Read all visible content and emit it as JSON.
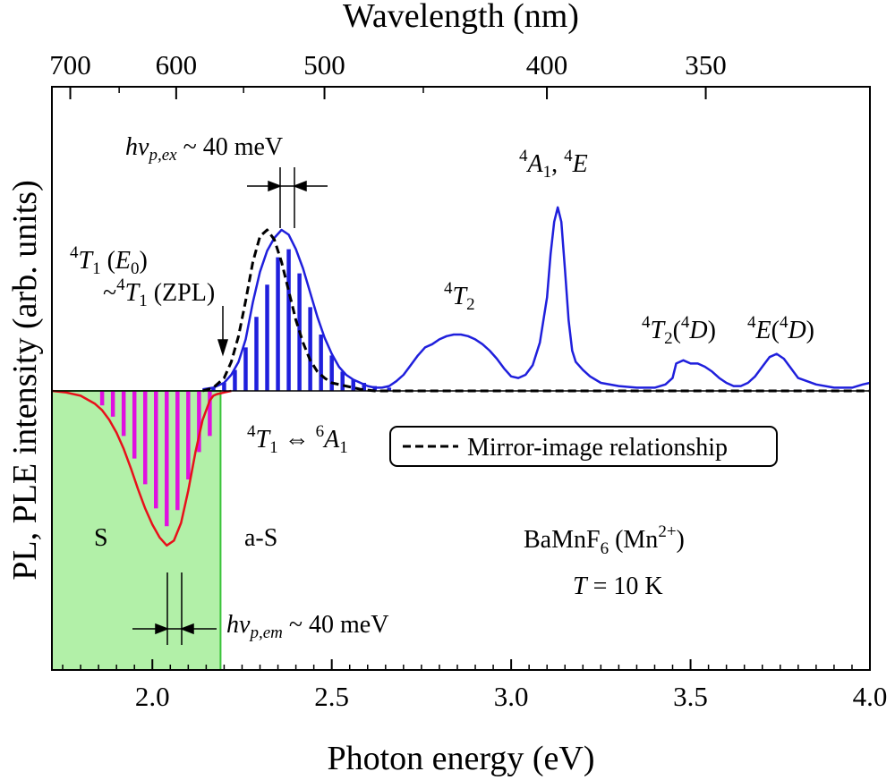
{
  "chart_data": {
    "type": "line",
    "xlabel": "Photon energy (eV)",
    "ylabel": "PL, PLE intensity (arb. units)",
    "top_axis_label": "Wavelength (nm)",
    "xlim": [
      1.72,
      4.0
    ],
    "x_ticks": [
      "2.0",
      "2.5",
      "3.0",
      "3.5",
      "4.0"
    ],
    "top_ticks": [
      "700",
      "600",
      "500",
      "400",
      "350"
    ],
    "top_tick_values_nm": [
      700,
      600,
      500,
      400,
      350
    ],
    "ylim": [
      -1.0,
      1.08
    ],
    "shaded_region": {
      "x": [
        1.72,
        2.19
      ],
      "color": "#b2f0a8",
      "edge": "#39c339"
    },
    "series": [
      {
        "role": "PLE",
        "color": "#1f1fdc",
        "x": [
          2.14,
          2.17,
          2.2,
          2.22,
          2.24,
          2.26,
          2.28,
          2.3,
          2.32,
          2.34,
          2.36,
          2.38,
          2.4,
          2.42,
          2.44,
          2.46,
          2.48,
          2.5,
          2.52,
          2.54,
          2.56,
          2.58,
          2.6,
          2.62,
          2.64,
          2.66,
          2.68,
          2.7,
          2.72,
          2.74,
          2.76,
          2.78,
          2.8,
          2.82,
          2.84,
          2.86,
          2.88,
          2.9,
          2.92,
          2.94,
          2.96,
          2.98,
          3.0,
          3.02,
          3.04,
          3.06,
          3.08,
          3.1,
          3.11,
          3.12,
          3.13,
          3.14,
          3.15,
          3.16,
          3.17,
          3.18,
          3.2,
          3.22,
          3.25,
          3.3,
          3.35,
          3.4,
          3.43,
          3.45,
          3.46,
          3.48,
          3.5,
          3.52,
          3.54,
          3.56,
          3.58,
          3.6,
          3.62,
          3.64,
          3.66,
          3.68,
          3.7,
          3.72,
          3.74,
          3.76,
          3.78,
          3.8,
          3.85,
          3.9,
          3.95,
          3.98,
          4.0
        ],
        "y": [
          0.01,
          0.02,
          0.05,
          0.1,
          0.18,
          0.32,
          0.55,
          0.74,
          0.87,
          0.95,
          1.0,
          0.97,
          0.88,
          0.76,
          0.61,
          0.46,
          0.33,
          0.23,
          0.15,
          0.1,
          0.07,
          0.05,
          0.03,
          0.02,
          0.02,
          0.03,
          0.06,
          0.1,
          0.16,
          0.22,
          0.27,
          0.29,
          0.32,
          0.34,
          0.35,
          0.35,
          0.34,
          0.32,
          0.29,
          0.25,
          0.2,
          0.14,
          0.09,
          0.08,
          0.1,
          0.16,
          0.3,
          0.58,
          0.85,
          1.05,
          1.14,
          1.05,
          0.75,
          0.44,
          0.25,
          0.18,
          0.13,
          0.09,
          0.05,
          0.03,
          0.02,
          0.02,
          0.04,
          0.08,
          0.17,
          0.19,
          0.17,
          0.17,
          0.15,
          0.12,
          0.08,
          0.05,
          0.03,
          0.03,
          0.05,
          0.09,
          0.15,
          0.21,
          0.23,
          0.2,
          0.14,
          0.08,
          0.04,
          0.02,
          0.02,
          0.04,
          0.05
        ]
      },
      {
        "role": "PL",
        "color": "#e8101a",
        "x": [
          1.72,
          1.76,
          1.8,
          1.84,
          1.86,
          1.88,
          1.9,
          1.92,
          1.94,
          1.96,
          1.98,
          2.0,
          2.02,
          2.04,
          2.06,
          2.08,
          2.1,
          2.12,
          2.14,
          2.16,
          2.17,
          2.18,
          2.2,
          2.22
        ],
        "y": [
          0.0,
          -0.01,
          -0.03,
          -0.08,
          -0.12,
          -0.18,
          -0.26,
          -0.36,
          -0.48,
          -0.61,
          -0.73,
          -0.83,
          -0.91,
          -0.96,
          -0.93,
          -0.82,
          -0.62,
          -0.38,
          -0.18,
          -0.06,
          -0.03,
          -0.02,
          -0.01,
          0.0
        ]
      },
      {
        "role": "mirror-image",
        "color": "#000000",
        "style": "dashed",
        "x": [
          2.14,
          2.17,
          2.2,
          2.22,
          2.24,
          2.26,
          2.28,
          2.3,
          2.32,
          2.34,
          2.36,
          2.38,
          2.4,
          2.42,
          2.44,
          2.46,
          2.48,
          2.5,
          2.52,
          2.54,
          2.56,
          2.58,
          2.62,
          2.7,
          3.0,
          3.5,
          4.0
        ],
        "y": [
          0.0,
          0.02,
          0.08,
          0.18,
          0.34,
          0.56,
          0.8,
          0.96,
          1.0,
          0.94,
          0.8,
          0.62,
          0.44,
          0.3,
          0.19,
          0.12,
          0.08,
          0.05,
          0.04,
          0.03,
          0.02,
          0.01,
          0.0,
          0.0,
          0.0,
          0.0,
          0.0
        ]
      }
    ],
    "ple_sticks": {
      "color": "#1f1fdc",
      "x": [
        2.17,
        2.2,
        2.23,
        2.26,
        2.29,
        2.32,
        2.35,
        2.38,
        2.41,
        2.44,
        2.47,
        2.5,
        2.53,
        2.56,
        2.59,
        2.62,
        2.66
      ],
      "y": [
        0.02,
        0.05,
        0.13,
        0.27,
        0.46,
        0.66,
        0.83,
        0.88,
        0.73,
        0.52,
        0.35,
        0.22,
        0.12,
        0.07,
        0.05,
        0.03,
        0.02
      ]
    },
    "pl_sticks": {
      "color": "#e010e0",
      "x": [
        1.86,
        1.89,
        1.92,
        1.95,
        1.98,
        2.01,
        2.04,
        2.07,
        2.1,
        2.13,
        2.16
      ],
      "y": [
        -0.09,
        -0.16,
        -0.28,
        -0.42,
        -0.58,
        -0.73,
        -0.84,
        -0.74,
        -0.55,
        -0.38,
        -0.28
      ]
    },
    "annotations": {
      "ple_width": "hν_p,ex ~ 40 meV",
      "pl_width": "hν_p,em ~ 40 meV",
      "zpl": "4T1 (E0) ~4T1 (ZPL)",
      "transition": "4T1 ⇔ 6A1",
      "peak_4A1_4E": "4A1, 4E",
      "peak_4T2": "4T2",
      "peak_4T2_4D": "4T2 (4D)",
      "peak_4E_4D": "4E (4D)",
      "stokes": "S",
      "anti_stokes": "a-S",
      "sample": "BaMnF6 (Mn2+)",
      "temperature": "T = 10 K"
    },
    "legend": {
      "entries": [
        "Mirror-image relationship"
      ],
      "placement": "center-right"
    }
  },
  "text": {
    "xlabel": "Photon energy (eV)",
    "ylabel": "PL, PLE intensity (arb. units)",
    "toplabel": "Wavelength (nm)",
    "legend": "Mirror-image relationship",
    "s": "S",
    "as": "a-S",
    "hv": "hν",
    "sub_ex": "p,ex",
    "sub_em": "p,em",
    "meV": " ~ 40 meV",
    "t1": "T",
    "e0": "E",
    "zpl": "(ZPL)",
    "sup4": "4",
    "sup6": "6",
    "sub1": "1",
    "sub0": "0",
    "sub2": "2",
    "tilde": "~",
    "arrow": "⇔",
    "A": "A",
    "E": "E",
    "D": "D",
    "sample": "BaMnF",
    "sample_sub": "6",
    "mn": "(Mn",
    "mn_sup": "2+",
    "close_paren": ")",
    "tvar": "T",
    "tval": " = 10 K",
    "lp": "(",
    "rp": ")",
    "comma": ", "
  }
}
